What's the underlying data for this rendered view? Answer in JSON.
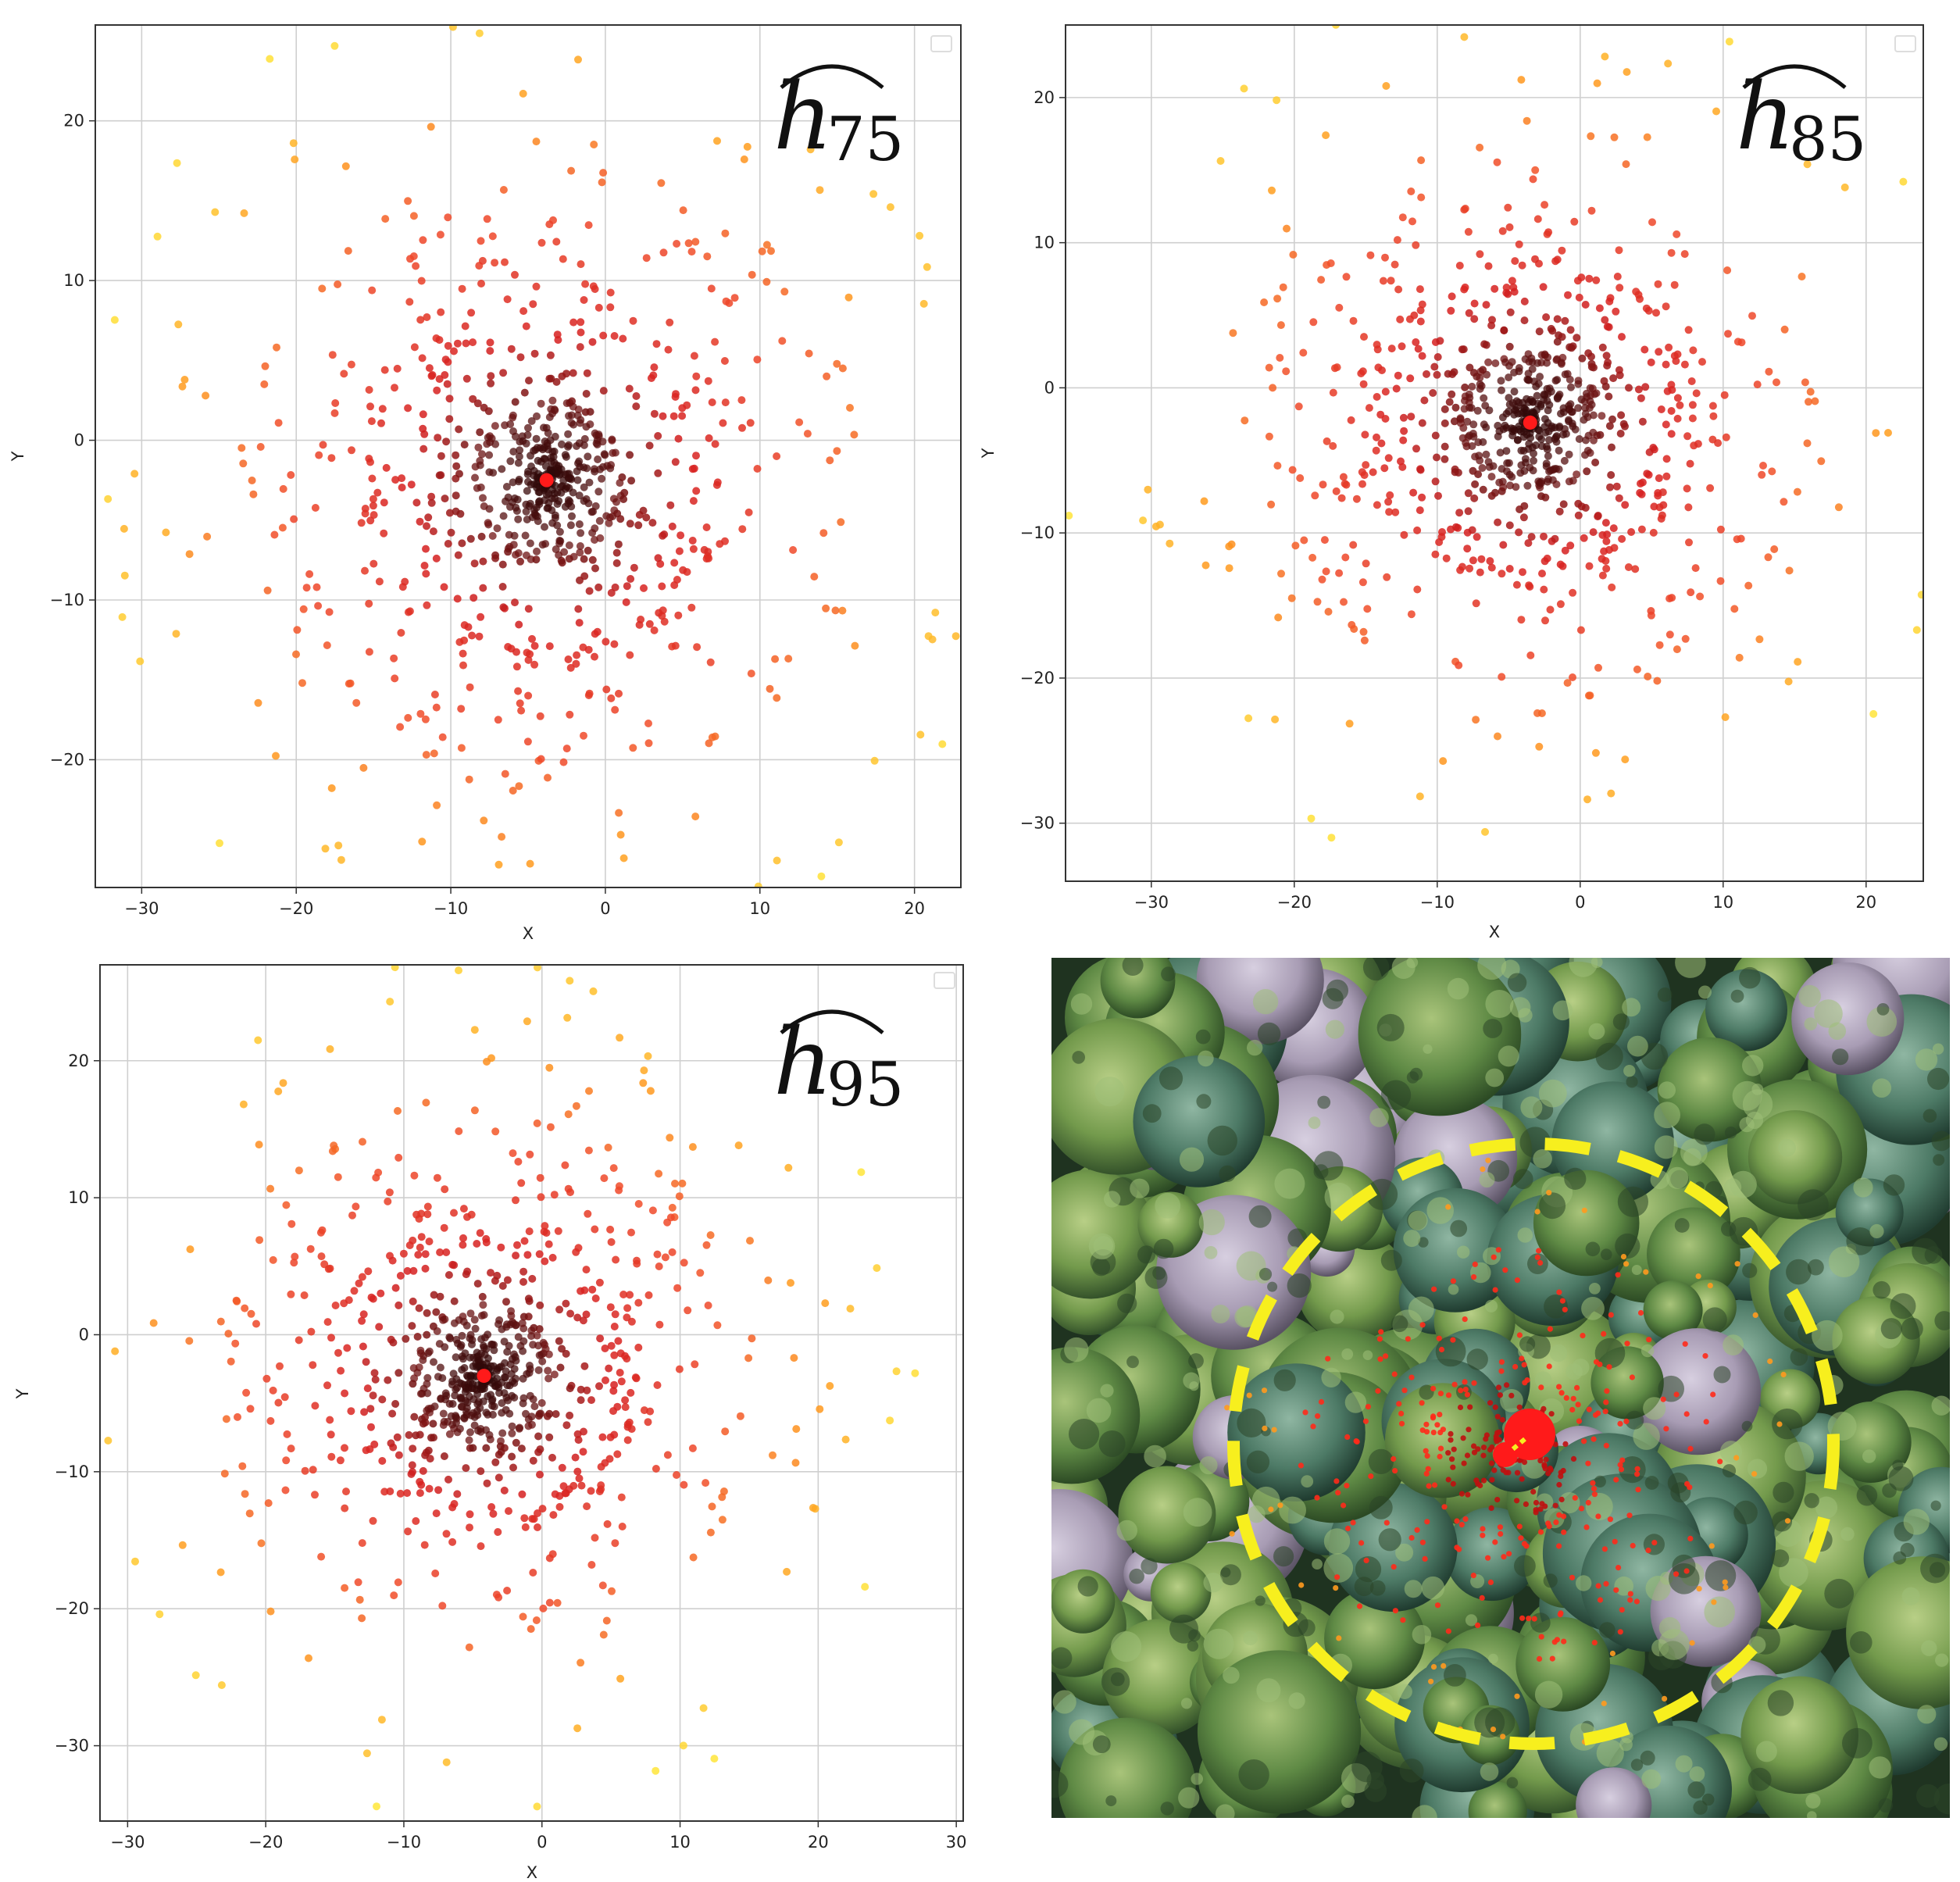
{
  "chart_data": [
    {
      "type": "scatter",
      "id": "h75",
      "title_base": "h",
      "title_sub": "75",
      "xlabel": "X",
      "ylabel": "Y",
      "xlim": [
        -33,
        23
      ],
      "ylim": [
        -28,
        26
      ],
      "xticks": [
        -30,
        -20,
        -10,
        0,
        10,
        20
      ],
      "yticks": [
        -20,
        -10,
        0,
        10,
        20
      ],
      "xtick_labels": [
        "−30",
        "−20",
        "−10",
        "0",
        "10",
        "20"
      ],
      "ytick_labels": [
        "−20",
        "−10",
        "0",
        "10",
        "20"
      ],
      "center": [
        -3.8,
        -2.5
      ],
      "grid": true,
      "legend": "top-right",
      "points_count": 900,
      "seed": 75
    },
    {
      "type": "scatter",
      "id": "h85",
      "title_base": "h",
      "title_sub": "85",
      "xlabel": "X",
      "ylabel": "Y",
      "xlim": [
        -36,
        24
      ],
      "ylim": [
        -34,
        25
      ],
      "xticks": [
        -30,
        -20,
        -10,
        0,
        10,
        20
      ],
      "yticks": [
        -30,
        -20,
        -10,
        0,
        10,
        20
      ],
      "xtick_labels": [
        "−30",
        "−20",
        "−10",
        "0",
        "10",
        "20"
      ],
      "ytick_labels": [
        "−30",
        "−20",
        "−10",
        "0",
        "10",
        "20"
      ],
      "center": [
        -3.5,
        -2.4
      ],
      "grid": true,
      "legend": "top-right",
      "points_count": 900,
      "seed": 85
    },
    {
      "type": "scatter",
      "id": "h95",
      "title_base": "h",
      "title_sub": "95",
      "xlabel": "X",
      "ylabel": "Y",
      "xlim": [
        -32,
        30.5
      ],
      "ylim": [
        -35.5,
        27
      ],
      "xticks": [
        -30,
        -20,
        -10,
        0,
        10,
        20,
        30
      ],
      "yticks": [
        -30,
        -20,
        -10,
        0,
        10,
        20
      ],
      "xtick_labels": [
        "−30",
        "−20",
        "−10",
        "0",
        "10",
        "20",
        "30"
      ],
      "ytick_labels": [
        "−30",
        "−20",
        "−10",
        "0",
        "10",
        "20"
      ],
      "center": [
        -4.2,
        -3.0
      ],
      "grid": true,
      "legend": "top-right",
      "points_count": 900,
      "seed": 95
    }
  ],
  "photo": {
    "description_label": "aerial-forest-canopy",
    "overlay_circle_color": "#f7ef1e",
    "point_color": "#ff2a1a",
    "center_marker_color": "#ff0000"
  },
  "colors": {
    "center_dark": "#2a0808",
    "mid": "#d62020",
    "outer": "#ff9a1e",
    "far": "#ffe83a",
    "center_marker": "#ff1a1a"
  }
}
